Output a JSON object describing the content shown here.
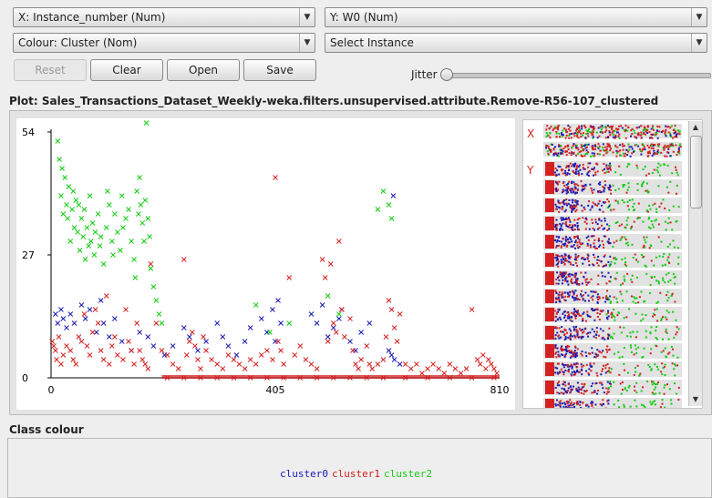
{
  "controls": {
    "x_axis": "X: Instance_number (Num)",
    "y_axis": "Y: W0 (Num)",
    "colour": "Colour: Cluster (Nom)",
    "select": "Select Instance",
    "buttons": {
      "reset": "Reset",
      "clear": "Clear",
      "open": "Open",
      "save": "Save"
    },
    "jitter_label": "Jitter",
    "jitter_value": 0
  },
  "plot_title": "Plot: Sales_Transactions_Dataset_Weekly-weka.filters.unsupervised.attribute.Remove-R56-107_clustered",
  "chart_data": {
    "type": "scatter",
    "marker": "x",
    "x_ticks": [
      "0",
      "405",
      "810"
    ],
    "y_ticks": [
      "54",
      "27",
      "0"
    ],
    "xlim": [
      0,
      810
    ],
    "ylim": [
      0,
      54
    ],
    "series": [
      {
        "name": "cluster0",
        "color": "#1a1ab4",
        "points": [
          [
            8,
            14
          ],
          [
            12,
            12
          ],
          [
            18,
            15
          ],
          [
            22,
            13
          ],
          [
            28,
            11
          ],
          [
            35,
            14
          ],
          [
            42,
            12
          ],
          [
            55,
            16
          ],
          [
            62,
            13
          ],
          [
            70,
            15
          ],
          [
            82,
            10
          ],
          [
            90,
            17
          ],
          [
            95,
            12
          ],
          [
            105,
            9
          ],
          [
            115,
            13
          ],
          [
            128,
            8
          ],
          [
            145,
            6
          ],
          [
            160,
            10
          ],
          [
            175,
            9
          ],
          [
            185,
            7
          ],
          [
            205,
            5
          ],
          [
            220,
            7
          ],
          [
            240,
            11
          ],
          [
            250,
            9
          ],
          [
            265,
            6
          ],
          [
            280,
            8
          ],
          [
            300,
            12
          ],
          [
            310,
            9
          ],
          [
            320,
            7
          ],
          [
            335,
            5
          ],
          [
            350,
            8
          ],
          [
            360,
            11
          ],
          [
            380,
            13
          ],
          [
            390,
            10
          ],
          [
            400,
            15
          ],
          [
            405,
            8
          ],
          [
            410,
            17
          ],
          [
            415,
            12
          ],
          [
            470,
            14
          ],
          [
            480,
            12
          ],
          [
            490,
            16
          ],
          [
            500,
            9
          ],
          [
            510,
            11
          ],
          [
            520,
            13
          ],
          [
            525,
            15
          ],
          [
            540,
            8
          ],
          [
            550,
            6
          ],
          [
            560,
            10
          ],
          [
            575,
            12
          ],
          [
            610,
            6
          ],
          [
            615,
            5
          ],
          [
            618,
            40
          ],
          [
            620,
            4
          ],
          [
            630,
            3
          ]
        ]
      },
      {
        "name": "cluster1",
        "color": "#d42020",
        "points": [
          [
            2,
            8
          ],
          [
            5,
            7
          ],
          [
            8,
            6
          ],
          [
            10,
            4
          ],
          [
            14,
            9
          ],
          [
            18,
            3
          ],
          [
            22,
            5
          ],
          [
            28,
            7
          ],
          [
            35,
            6
          ],
          [
            40,
            4
          ],
          [
            45,
            3
          ],
          [
            50,
            9
          ],
          [
            55,
            8
          ],
          [
            60,
            14
          ],
          [
            65,
            7
          ],
          [
            70,
            5
          ],
          [
            75,
            10
          ],
          [
            80,
            15
          ],
          [
            85,
            12
          ],
          [
            90,
            6
          ],
          [
            95,
            4
          ],
          [
            100,
            18
          ],
          [
            105,
            3
          ],
          [
            110,
            7
          ],
          [
            115,
            9
          ],
          [
            120,
            5
          ],
          [
            130,
            4
          ],
          [
            135,
            15
          ],
          [
            140,
            8
          ],
          [
            145,
            6
          ],
          [
            150,
            3
          ],
          [
            155,
            12
          ],
          [
            160,
            6
          ],
          [
            165,
            4
          ],
          [
            170,
            3
          ],
          [
            175,
            2
          ],
          [
            180,
            25
          ],
          [
            190,
            12
          ],
          [
            200,
            6
          ],
          [
            210,
            5
          ],
          [
            220,
            3
          ],
          [
            230,
            2
          ],
          [
            240,
            26
          ],
          [
            245,
            5
          ],
          [
            250,
            8
          ],
          [
            255,
            10
          ],
          [
            260,
            7
          ],
          [
            265,
            4
          ],
          [
            270,
            2
          ],
          [
            275,
            9
          ],
          [
            280,
            6
          ],
          [
            290,
            4
          ],
          [
            300,
            3
          ],
          [
            310,
            2
          ],
          [
            320,
            5
          ],
          [
            330,
            4
          ],
          [
            340,
            3
          ],
          [
            350,
            2
          ],
          [
            360,
            4
          ],
          [
            370,
            3
          ],
          [
            380,
            5
          ],
          [
            390,
            6
          ],
          [
            400,
            4
          ],
          [
            405,
            44
          ],
          [
            410,
            8
          ],
          [
            415,
            6
          ],
          [
            420,
            3
          ],
          [
            430,
            22
          ],
          [
            440,
            5
          ],
          [
            450,
            7
          ],
          [
            460,
            4
          ],
          [
            470,
            3
          ],
          [
            480,
            2
          ],
          [
            490,
            26
          ],
          [
            495,
            22
          ],
          [
            500,
            8
          ],
          [
            505,
            25
          ],
          [
            510,
            12
          ],
          [
            515,
            10
          ],
          [
            520,
            30
          ],
          [
            525,
            15
          ],
          [
            530,
            9
          ],
          [
            540,
            13
          ],
          [
            545,
            6
          ],
          [
            550,
            3
          ],
          [
            555,
            2
          ],
          [
            560,
            4
          ],
          [
            570,
            7
          ],
          [
            575,
            3
          ],
          [
            580,
            2
          ],
          [
            590,
            3
          ],
          [
            600,
            4
          ],
          [
            605,
            9
          ],
          [
            610,
            17
          ],
          [
            615,
            15
          ],
          [
            620,
            11
          ],
          [
            625,
            8
          ],
          [
            630,
            14
          ],
          [
            640,
            3
          ],
          [
            650,
            2
          ],
          [
            660,
            3
          ],
          [
            670,
            1
          ],
          [
            680,
            2
          ],
          [
            690,
            3
          ],
          [
            700,
            2
          ],
          [
            710,
            1
          ],
          [
            720,
            3
          ],
          [
            730,
            2
          ],
          [
            740,
            1
          ],
          [
            750,
            2
          ],
          [
            760,
            15
          ],
          [
            770,
            4
          ],
          [
            775,
            3
          ],
          [
            780,
            5
          ],
          [
            785,
            2
          ],
          [
            790,
            4
          ],
          [
            795,
            3
          ],
          [
            800,
            2
          ],
          [
            805,
            1
          ]
        ]
      },
      {
        "name": "cluster2",
        "color": "#12cc12",
        "points": [
          [
            12,
            52
          ],
          [
            15,
            48
          ],
          [
            18,
            40
          ],
          [
            20,
            46
          ],
          [
            22,
            36
          ],
          [
            25,
            44
          ],
          [
            28,
            38
          ],
          [
            30,
            35
          ],
          [
            32,
            42
          ],
          [
            35,
            30
          ],
          [
            38,
            37
          ],
          [
            40,
            41
          ],
          [
            42,
            33
          ],
          [
            45,
            39
          ],
          [
            48,
            32
          ],
          [
            50,
            38
          ],
          [
            52,
            28
          ],
          [
            55,
            35
          ],
          [
            58,
            31
          ],
          [
            60,
            37
          ],
          [
            62,
            26
          ],
          [
            65,
            33
          ],
          [
            68,
            29
          ],
          [
            70,
            40
          ],
          [
            72,
            30
          ],
          [
            75,
            34
          ],
          [
            78,
            27
          ],
          [
            80,
            32
          ],
          [
            85,
            36
          ],
          [
            88,
            29
          ],
          [
            90,
            31
          ],
          [
            95,
            25
          ],
          [
            100,
            33
          ],
          [
            102,
            41
          ],
          [
            105,
            38
          ],
          [
            110,
            30
          ],
          [
            112,
            27
          ],
          [
            115,
            36
          ],
          [
            120,
            32
          ],
          [
            125,
            28
          ],
          [
            128,
            40
          ],
          [
            130,
            33
          ],
          [
            135,
            35
          ],
          [
            140,
            37
          ],
          [
            145,
            30
          ],
          [
            150,
            26
          ],
          [
            152,
            22
          ],
          [
            155,
            41
          ],
          [
            158,
            36
          ],
          [
            160,
            44
          ],
          [
            162,
            38
          ],
          [
            165,
            34
          ],
          [
            168,
            30
          ],
          [
            170,
            39
          ],
          [
            172,
            56
          ],
          [
            175,
            35
          ],
          [
            178,
            31
          ],
          [
            180,
            24
          ],
          [
            185,
            20
          ],
          [
            190,
            17
          ],
          [
            195,
            14
          ],
          [
            200,
            12
          ],
          [
            370,
            16
          ],
          [
            395,
            10
          ],
          [
            430,
            12
          ],
          [
            500,
            18
          ],
          [
            520,
            14
          ],
          [
            590,
            37
          ],
          [
            600,
            41
          ],
          [
            610,
            38
          ],
          [
            615,
            35
          ]
        ]
      }
    ],
    "line_points": [
      [
        210,
        0
      ],
      [
        240,
        0
      ],
      [
        270,
        0
      ],
      [
        300,
        0
      ],
      [
        330,
        0
      ],
      [
        360,
        0
      ],
      [
        390,
        0
      ],
      [
        420,
        0
      ],
      [
        450,
        0
      ],
      [
        480,
        0
      ],
      [
        510,
        0
      ],
      [
        540,
        0
      ],
      [
        570,
        0
      ],
      [
        600,
        0
      ],
      [
        640,
        0
      ],
      [
        680,
        0
      ],
      [
        720,
        0
      ],
      [
        760,
        0
      ],
      [
        800,
        0
      ]
    ]
  },
  "class_colour": {
    "title": "Class colour",
    "items": [
      {
        "label": "cluster0",
        "color": "#1a1ab4"
      },
      {
        "label": "cluster1",
        "color": "#d42020"
      },
      {
        "label": "cluster2",
        "color": "#12cc12"
      }
    ]
  },
  "attribute_panel": {
    "x_marker": "X",
    "y_marker": "Y"
  }
}
